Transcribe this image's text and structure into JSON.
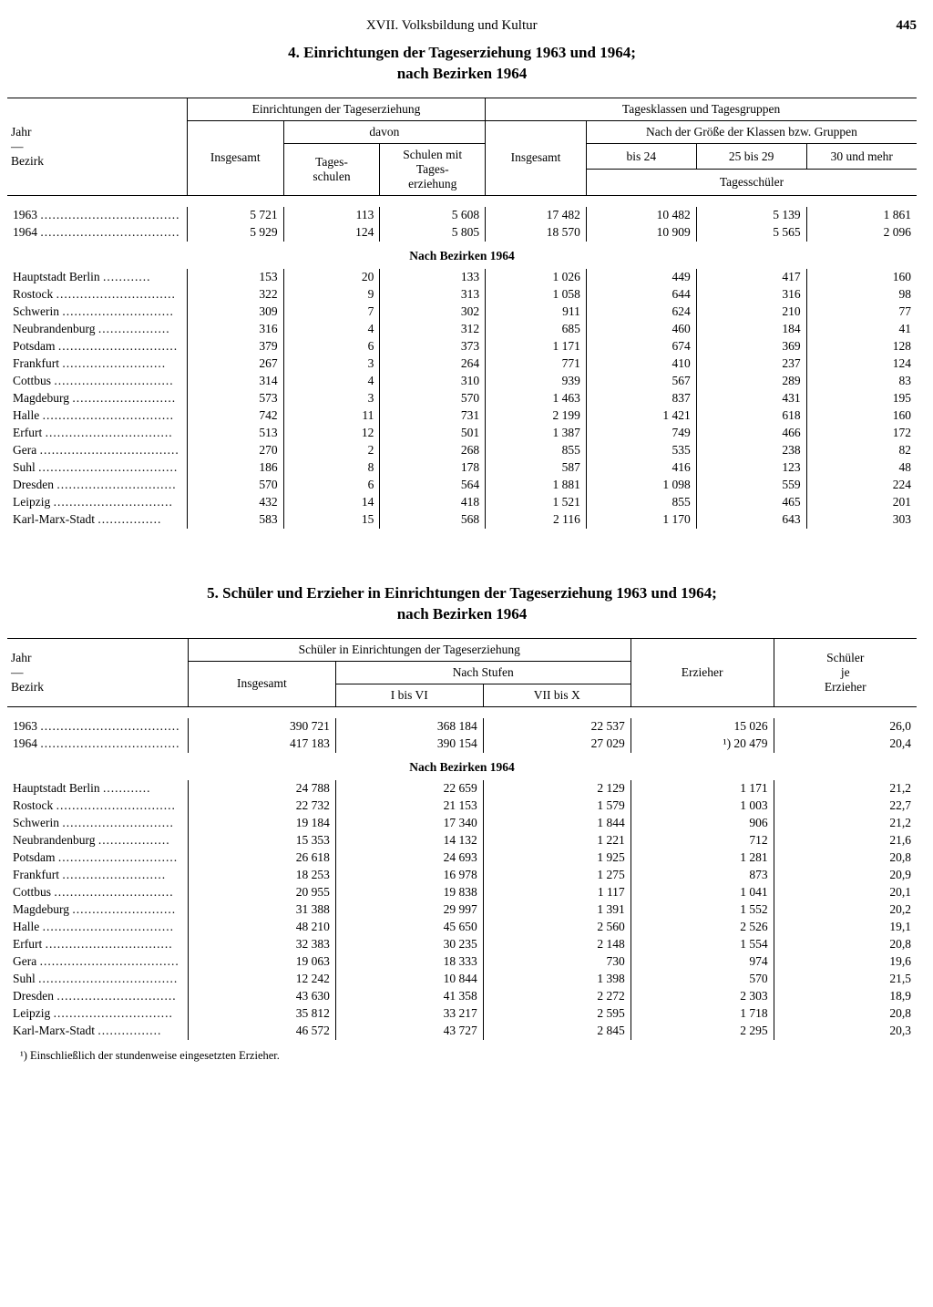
{
  "header": {
    "section": "XVII. Volksbildung und Kultur",
    "page": "445"
  },
  "table4": {
    "title_line1": "4. Einrichtungen der Tageserziehung 1963 und 1964;",
    "title_line2": "nach Bezirken 1964",
    "head": {
      "jahr": "Jahr",
      "dash": "—",
      "bezirk": "Bezirk",
      "einr": "Einrichtungen der Tageserziehung",
      "insgesamt": "Insgesamt",
      "davon": "davon",
      "tagesschulen": "Tages-\nschulen",
      "schulen_mit": "Schulen mit\nTages-\nerziehung",
      "tagesklassen": "Tagesklassen und Tagesgruppen",
      "nach_groesse": "Nach der Größe der Klassen bzw. Gruppen",
      "bis24": "bis 24",
      "r25_29": "25 bis 29",
      "r30plus": "30 und mehr",
      "tagesschueler": "Tagesschüler"
    },
    "subheading": "Nach Bezirken 1964",
    "years": [
      {
        "label": "1963",
        "c": [
          "5 721",
          "113",
          "5 608",
          "17 482",
          "10 482",
          "5 139",
          "1 861"
        ]
      },
      {
        "label": "1964",
        "c": [
          "5 929",
          "124",
          "5 805",
          "18 570",
          "10 909",
          "5 565",
          "2 096"
        ]
      }
    ],
    "districts": [
      {
        "label": "Hauptstadt Berlin",
        "c": [
          "153",
          "20",
          "133",
          "1 026",
          "449",
          "417",
          "160"
        ]
      },
      {
        "label": "Rostock",
        "c": [
          "322",
          "9",
          "313",
          "1 058",
          "644",
          "316",
          "98"
        ]
      },
      {
        "label": "Schwerin",
        "c": [
          "309",
          "7",
          "302",
          "911",
          "624",
          "210",
          "77"
        ]
      },
      {
        "label": "Neubrandenburg",
        "c": [
          "316",
          "4",
          "312",
          "685",
          "460",
          "184",
          "41"
        ]
      },
      {
        "label": "Potsdam",
        "c": [
          "379",
          "6",
          "373",
          "1 171",
          "674",
          "369",
          "128"
        ]
      },
      {
        "label": "Frankfurt",
        "c": [
          "267",
          "3",
          "264",
          "771",
          "410",
          "237",
          "124"
        ]
      },
      {
        "label": "Cottbus",
        "c": [
          "314",
          "4",
          "310",
          "939",
          "567",
          "289",
          "83"
        ]
      },
      {
        "label": "Magdeburg",
        "c": [
          "573",
          "3",
          "570",
          "1 463",
          "837",
          "431",
          "195"
        ]
      },
      {
        "label": "Halle",
        "c": [
          "742",
          "11",
          "731",
          "2 199",
          "1 421",
          "618",
          "160"
        ]
      },
      {
        "label": "Erfurt",
        "c": [
          "513",
          "12",
          "501",
          "1 387",
          "749",
          "466",
          "172"
        ]
      },
      {
        "label": "Gera",
        "c": [
          "270",
          "2",
          "268",
          "855",
          "535",
          "238",
          "82"
        ]
      },
      {
        "label": "Suhl",
        "c": [
          "186",
          "8",
          "178",
          "587",
          "416",
          "123",
          "48"
        ]
      },
      {
        "label": "Dresden",
        "c": [
          "570",
          "6",
          "564",
          "1 881",
          "1 098",
          "559",
          "224"
        ]
      },
      {
        "label": "Leipzig",
        "c": [
          "432",
          "14",
          "418",
          "1 521",
          "855",
          "465",
          "201"
        ]
      },
      {
        "label": "Karl-Marx-Stadt",
        "c": [
          "583",
          "15",
          "568",
          "2 116",
          "1 170",
          "643",
          "303"
        ]
      }
    ]
  },
  "table5": {
    "title_line1": "5. Schüler und Erzieher in Einrichtungen der Tageserziehung 1963 und 1964;",
    "title_line2": "nach Bezirken 1964",
    "head": {
      "jahr": "Jahr",
      "dash": "—",
      "bezirk": "Bezirk",
      "schueler_in": "Schüler in Einrichtungen der Tageserziehung",
      "insgesamt": "Insgesamt",
      "nach_stufen": "Nach Stufen",
      "stufe1": "I bis VI",
      "stufe2": "VII bis X",
      "erzieher": "Erzieher",
      "schueler_je": "Schüler\nje\nErzieher"
    },
    "subheading": "Nach Bezirken 1964",
    "years": [
      {
        "label": "1963",
        "c": [
          "390 721",
          "368 184",
          "22 537",
          "15 026",
          "26,0"
        ]
      },
      {
        "label": "1964",
        "c": [
          "417 183",
          "390 154",
          "27 029",
          "¹) 20 479",
          "20,4"
        ]
      }
    ],
    "districts": [
      {
        "label": "Hauptstadt Berlin",
        "c": [
          "24 788",
          "22 659",
          "2 129",
          "1 171",
          "21,2"
        ]
      },
      {
        "label": "Rostock",
        "c": [
          "22 732",
          "21 153",
          "1 579",
          "1 003",
          "22,7"
        ]
      },
      {
        "label": "Schwerin",
        "c": [
          "19 184",
          "17 340",
          "1 844",
          "906",
          "21,2"
        ]
      },
      {
        "label": "Neubrandenburg",
        "c": [
          "15 353",
          "14 132",
          "1 221",
          "712",
          "21,6"
        ]
      },
      {
        "label": "Potsdam",
        "c": [
          "26 618",
          "24 693",
          "1 925",
          "1 281",
          "20,8"
        ]
      },
      {
        "label": "Frankfurt",
        "c": [
          "18 253",
          "16 978",
          "1 275",
          "873",
          "20,9"
        ]
      },
      {
        "label": "Cottbus",
        "c": [
          "20 955",
          "19 838",
          "1 117",
          "1 041",
          "20,1"
        ]
      },
      {
        "label": "Magdeburg",
        "c": [
          "31 388",
          "29 997",
          "1 391",
          "1 552",
          "20,2"
        ]
      },
      {
        "label": "Halle",
        "c": [
          "48 210",
          "45 650",
          "2 560",
          "2 526",
          "19,1"
        ]
      },
      {
        "label": "Erfurt",
        "c": [
          "32 383",
          "30 235",
          "2 148",
          "1 554",
          "20,8"
        ]
      },
      {
        "label": "Gera",
        "c": [
          "19 063",
          "18 333",
          "730",
          "974",
          "19,6"
        ]
      },
      {
        "label": "Suhl",
        "c": [
          "12 242",
          "10 844",
          "1 398",
          "570",
          "21,5"
        ]
      },
      {
        "label": "Dresden",
        "c": [
          "43 630",
          "41 358",
          "2 272",
          "2 303",
          "18,9"
        ]
      },
      {
        "label": "Leipzig",
        "c": [
          "35 812",
          "33 217",
          "2 595",
          "1 718",
          "20,8"
        ]
      },
      {
        "label": "Karl-Marx-Stadt",
        "c": [
          "46 572",
          "43 727",
          "2 845",
          "2 295",
          "20,3"
        ]
      }
    ],
    "footnote": "¹) Einschließlich der stundenweise eingesetzten Erzieher."
  },
  "colwidths": {
    "t4": [
      "180",
      "105",
      "105",
      "115",
      "110",
      "120",
      "120",
      "120"
    ],
    "t5": [
      "180",
      "160",
      "160",
      "160",
      "155",
      "155"
    ]
  }
}
